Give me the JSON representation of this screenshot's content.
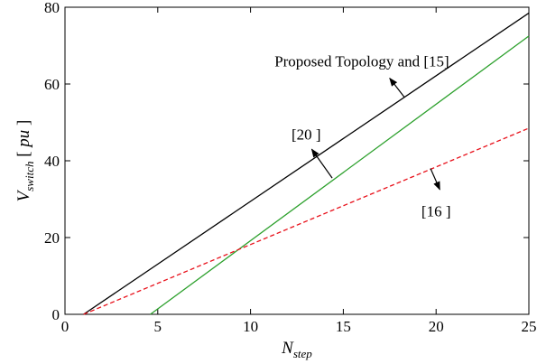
{
  "chart_data": {
    "type": "line",
    "xlabel": {
      "main": "N",
      "sub": "step"
    },
    "ylabel": {
      "main": "V",
      "sub": "switch",
      "suffix_open": " [ ",
      "suffix_unit": "pu",
      "suffix_close": " ]"
    },
    "xlim": [
      0,
      25
    ],
    "ylim": [
      0,
      80
    ],
    "xticks": [
      0,
      5,
      10,
      15,
      20,
      25
    ],
    "yticks": [
      0,
      20,
      40,
      60,
      80
    ],
    "grid": false,
    "series": [
      {
        "color": "#000000",
        "dash": "solid",
        "x": [
          1,
          25
        ],
        "y": [
          0,
          78.5
        ]
      },
      {
        "color": "#2ca02c",
        "dash": "solid",
        "x": [
          4.6,
          25
        ],
        "y": [
          0,
          72.5
        ]
      },
      {
        "color": "#e8101a",
        "dash": "dashed",
        "x": [
          1,
          25
        ],
        "y": [
          0,
          48.5
        ]
      }
    ],
    "annotations": [
      {
        "text": "Proposed Topology and [15]",
        "label_at": [
          16,
          66
        ],
        "arrow_from": [
          18.3,
          56.5
        ],
        "arrow_to": [
          17.5,
          61.5
        ]
      },
      {
        "text": "[20 ]",
        "label_at": [
          13,
          47
        ],
        "arrow_from": [
          14.4,
          35.5
        ],
        "arrow_to": [
          13.3,
          43
        ]
      },
      {
        "text": "[16 ]",
        "label_at": [
          20,
          27
        ],
        "arrow_from": [
          19.7,
          38
        ],
        "arrow_to": [
          20.2,
          32.5
        ]
      }
    ]
  }
}
